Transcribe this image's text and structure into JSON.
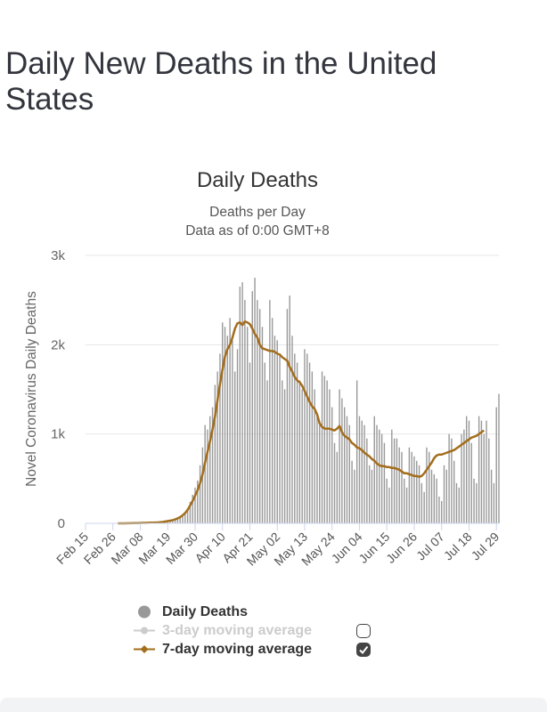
{
  "page": {
    "title": "Daily New Deaths in the United States"
  },
  "colors": {
    "bars": "#999999",
    "ma7": "#a36d1c",
    "ma3": "#cccccc",
    "grid": "#e6e6e6",
    "axis": "#ccd6eb"
  },
  "chart_data": {
    "type": "bar",
    "title": "Daily Deaths",
    "subtitle_lines": [
      "Deaths per Day",
      "Data as of 0:00 GMT+8"
    ],
    "ylabel": "Novel Coronavirus Daily Deaths",
    "ylim": [
      0,
      3000
    ],
    "yticks": [
      0,
      1000,
      2000,
      3000
    ],
    "ytick_labels": [
      "0",
      "1k",
      "2k",
      "3k"
    ],
    "start_date": "Feb 15",
    "xtick_labels": [
      "Feb 15",
      "Feb 26",
      "Mar 08",
      "Mar 19",
      "Mar 30",
      "Apr 10",
      "Apr 21",
      "May 02",
      "May 13",
      "May 24",
      "Jun 04",
      "Jun 15",
      "Jun 26",
      "Jul 07",
      "Jul 18",
      "Jul 29"
    ],
    "xtick_interval_days": 11,
    "series": [
      {
        "name": "Daily Deaths",
        "type": "bar",
        "values": [
          0,
          0,
          0,
          0,
          0,
          0,
          0,
          0,
          0,
          0,
          0,
          0,
          0,
          0,
          0,
          0,
          1,
          0,
          1,
          1,
          2,
          0,
          3,
          0,
          2,
          4,
          3,
          2,
          5,
          4,
          5,
          10,
          12,
          17,
          18,
          31,
          40,
          48,
          59,
          90,
          120,
          170,
          240,
          320,
          400,
          480,
          650,
          850,
          1100,
          1050,
          1200,
          1300,
          1550,
          1700,
          1900,
          2250,
          2200,
          2100,
          2300,
          2050,
          1700,
          1950,
          2650,
          2700,
          2500,
          2200,
          1800,
          2600,
          2750,
          2500,
          2400,
          2200,
          1800,
          1600,
          2500,
          2300,
          2100,
          2050,
          1900,
          1600,
          1500,
          2400,
          2550,
          2100,
          1900,
          1800,
          1600,
          1500,
          1950,
          1900,
          1800,
          1700,
          1500,
          1200,
          1100,
          1700,
          1650,
          1600,
          1500,
          1300,
          900,
          800,
          1500,
          1400,
          1300,
          1200,
          1100,
          700,
          600,
          1600,
          1200,
          1150,
          1100,
          950,
          650,
          600,
          1200,
          1100,
          1050,
          1000,
          900,
          500,
          400,
          1050,
          950,
          950,
          850,
          800,
          500,
          400,
          850,
          800,
          750,
          700,
          650,
          450,
          350,
          850,
          800,
          600,
          550,
          500,
          300,
          250,
          650,
          600,
          1000,
          950,
          700,
          450,
          400,
          1000,
          1050,
          1200,
          1150,
          900,
          500,
          450,
          1200,
          1150,
          1000,
          1150,
          950,
          600,
          450,
          1300,
          1450
        ]
      },
      {
        "name": "7-day moving average",
        "type": "line",
        "enabled": true,
        "values": [
          null,
          null,
          null,
          null,
          null,
          null,
          null,
          null,
          null,
          null,
          null,
          null,
          null,
          0,
          0,
          0,
          0,
          1,
          1,
          2,
          3,
          3,
          4,
          5,
          5,
          6,
          7,
          8,
          9,
          10,
          12,
          15,
          20,
          25,
          30,
          35,
          45,
          55,
          70,
          90,
          115,
          150,
          200,
          250,
          310,
          370,
          450,
          550,
          680,
          800,
          920,
          1050,
          1200,
          1380,
          1560,
          1720,
          1870,
          1950,
          2000,
          2080,
          2180,
          2240,
          2250,
          2220,
          2260,
          2250,
          2230,
          2180,
          2120,
          2080,
          2000,
          1960,
          1950,
          1940,
          1930,
          1930,
          1920,
          1900,
          1890,
          1860,
          1840,
          1820,
          1750,
          1700,
          1640,
          1600,
          1580,
          1540,
          1480,
          1420,
          1360,
          1310,
          1280,
          1220,
          1120,
          1080,
          1060,
          1060,
          1060,
          1050,
          1040,
          1060,
          1090,
          1020,
          980,
          960,
          940,
          900,
          880,
          850,
          840,
          820,
          790,
          770,
          750,
          720,
          700,
          670,
          650,
          640,
          640,
          630,
          630,
          620,
          620,
          610,
          600,
          580,
          560,
          560,
          550,
          540,
          530,
          530,
          520,
          530,
          560,
          600,
          640,
          680,
          730,
          760,
          770,
          770,
          780,
          790,
          800,
          810,
          820,
          840,
          860,
          880,
          900,
          920,
          940,
          960,
          970,
          980,
          1000,
          1020,
          1040
        ]
      },
      {
        "name": "3-day moving average",
        "type": "line",
        "enabled": false
      }
    ],
    "legend": [
      {
        "label": "Daily Deaths",
        "marker": "circle",
        "active": true
      },
      {
        "label": "3-day moving average",
        "marker": "circle-line",
        "active": false
      },
      {
        "label": "7-day moving average",
        "marker": "diamond-line",
        "active": true
      }
    ]
  }
}
